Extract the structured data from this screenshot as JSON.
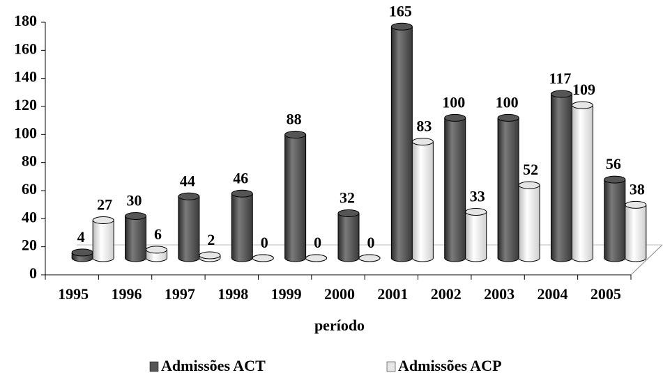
{
  "chart_data": {
    "type": "bar3d",
    "x_label": "período",
    "categories": [
      "1995",
      "1996",
      "1997",
      "1998",
      "1999",
      "2000",
      "2001",
      "2002",
      "2003",
      "2004",
      "2005"
    ],
    "series": [
      {
        "name": "Admissões ACT",
        "color": "#555555",
        "values": [
          4,
          30,
          44,
          46,
          88,
          32,
          165,
          100,
          100,
          117,
          56
        ]
      },
      {
        "name": "Admissões ACP",
        "color": "#e6e6e6",
        "values": [
          27,
          6,
          2,
          0,
          0,
          0,
          83,
          33,
          52,
          109,
          38
        ]
      }
    ],
    "ylim": [
      0,
      180
    ],
    "yticks": [
      0,
      20,
      40,
      60,
      80,
      100,
      120,
      140,
      160,
      180
    ],
    "legend": "bottom"
  }
}
